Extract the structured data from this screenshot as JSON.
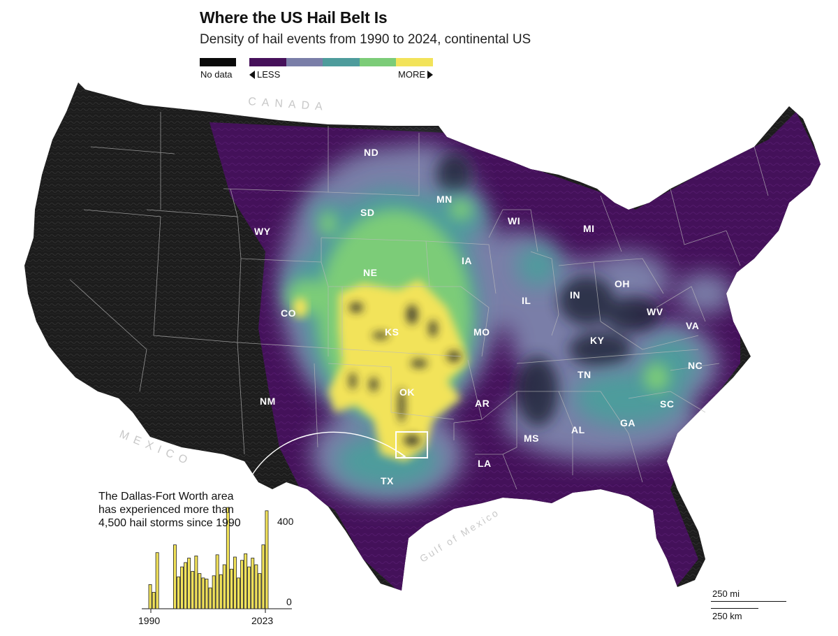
{
  "header": {
    "title": "Where the US Hail Belt Is",
    "subtitle": "Density of hail events from 1990 to 2024, continental US"
  },
  "legend": {
    "no_data_label": "No data",
    "less_label": "LESS",
    "more_label": "MORE",
    "no_data_color": "#0a0a0a",
    "ramp_colors": [
      "#46115a",
      "#7a7ea8",
      "#4e9c9c",
      "#7ccc78",
      "#f2e35a"
    ]
  },
  "geo_labels": {
    "canada": "CANADA",
    "mexico": "MEXICO",
    "gulf": "Gulf of Mexico"
  },
  "state_labels": [
    "ND",
    "MN",
    "SD",
    "WI",
    "MI",
    "WY",
    "NE",
    "IA",
    "CO",
    "KS",
    "IL",
    "IN",
    "OH",
    "WV",
    "MO",
    "KY",
    "VA",
    "NM",
    "OK",
    "TN",
    "NC",
    "AR",
    "SC",
    "AL",
    "GA",
    "MS",
    "LA",
    "TX"
  ],
  "annotation": {
    "text": "The Dallas-Fort Worth area has experienced more than 4,500 hail storms since 1990"
  },
  "chart_data": {
    "type": "bar",
    "title": "",
    "x": [
      1990,
      1991,
      1992,
      1993,
      1994,
      1995,
      1996,
      1997,
      1998,
      1999,
      2000,
      2001,
      2002,
      2003,
      2004,
      2005,
      2006,
      2007,
      2008,
      2009,
      2010,
      2011,
      2012,
      2013,
      2014,
      2015,
      2016,
      2017,
      2018,
      2019,
      2020,
      2021,
      2022,
      2023
    ],
    "values": [
      110,
      75,
      255,
      0,
      0,
      0,
      0,
      290,
      145,
      190,
      210,
      230,
      170,
      240,
      160,
      140,
      135,
      95,
      150,
      245,
      155,
      200,
      460,
      180,
      235,
      140,
      220,
      250,
      190,
      230,
      200,
      160,
      290,
      445
    ],
    "x_tick_labels": [
      "1990",
      "2023"
    ],
    "y_tick_labels": [
      "0",
      "400"
    ],
    "ylim": [
      0,
      500
    ],
    "bar_color": "#f2e35a",
    "xlabel": "",
    "ylabel": ""
  },
  "scale": {
    "miles_label": "250 mi",
    "km_label": "250 km"
  }
}
